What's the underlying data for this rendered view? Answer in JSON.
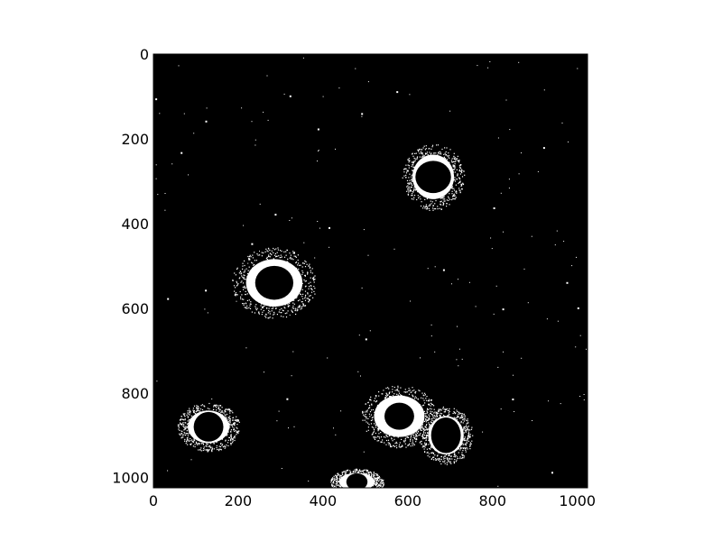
{
  "figure": {
    "kind": "image-plot",
    "description_palette": {
      "background": "#ffffff",
      "image_background": "#000000",
      "foreground": "#ffffff",
      "axis": "#000000"
    },
    "axes": {
      "x_range": [
        0,
        1024
      ],
      "y_range": [
        0,
        1024
      ],
      "y_inverted": true,
      "x_ticks": [
        "0",
        "200",
        "400",
        "600",
        "800",
        "1000"
      ],
      "y_ticks": [
        "0",
        "200",
        "400",
        "600",
        "800",
        "1000"
      ]
    },
    "objects": [
      {
        "name": "cell-1",
        "center": [
          660,
          290
        ],
        "halo_radius": [
          70,
          75
        ],
        "nucleus_radius": [
          42,
          38
        ]
      },
      {
        "name": "cell-2",
        "center": [
          285,
          540
        ],
        "halo_radius": [
          95,
          80
        ],
        "nucleus_radius": [
          45,
          40
        ]
      },
      {
        "name": "cell-3",
        "center": [
          130,
          880
        ],
        "halo_radius": [
          70,
          55
        ],
        "nucleus_radius": [
          35,
          35
        ]
      },
      {
        "name": "cell-4",
        "center": [
          580,
          855
        ],
        "halo_radius": [
          85,
          70
        ],
        "nucleus_radius": [
          35,
          32
        ]
      },
      {
        "name": "cell-5",
        "center": [
          690,
          900
        ],
        "halo_radius": [
          60,
          65
        ],
        "nucleus_radius": [
          35,
          42
        ]
      },
      {
        "name": "cell-6",
        "center": [
          480,
          1010
        ],
        "halo_radius": [
          60,
          30
        ],
        "nucleus_radius": [
          25,
          20
        ]
      }
    ]
  }
}
